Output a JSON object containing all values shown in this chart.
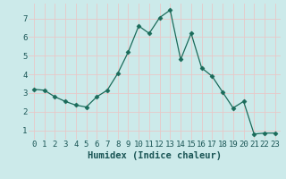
{
  "x": [
    0,
    1,
    2,
    3,
    4,
    5,
    6,
    7,
    8,
    9,
    10,
    11,
    12,
    13,
    14,
    15,
    16,
    17,
    18,
    19,
    20,
    21,
    22,
    23
  ],
  "y": [
    3.2,
    3.15,
    2.8,
    2.55,
    2.35,
    2.25,
    2.8,
    3.15,
    4.05,
    5.2,
    6.6,
    6.2,
    7.05,
    7.45,
    4.8,
    6.2,
    4.35,
    3.9,
    3.05,
    2.2,
    2.55,
    0.8,
    0.85,
    0.85
  ],
  "line_color": "#1a6b5a",
  "marker": "D",
  "marker_size": 2.5,
  "bg_color": "#cceaea",
  "grid_color": "#e8c8c8",
  "xlabel": "Humidex (Indice chaleur)",
  "xlim": [
    -0.5,
    23.5
  ],
  "ylim": [
    0.5,
    7.8
  ],
  "yticks": [
    1,
    2,
    3,
    4,
    5,
    6,
    7
  ],
  "xticks": [
    0,
    1,
    2,
    3,
    4,
    5,
    6,
    7,
    8,
    9,
    10,
    11,
    12,
    13,
    14,
    15,
    16,
    17,
    18,
    19,
    20,
    21,
    22,
    23
  ],
  "xlabel_fontsize": 7.5,
  "tick_fontsize": 6.5,
  "label_color": "#1a5555"
}
